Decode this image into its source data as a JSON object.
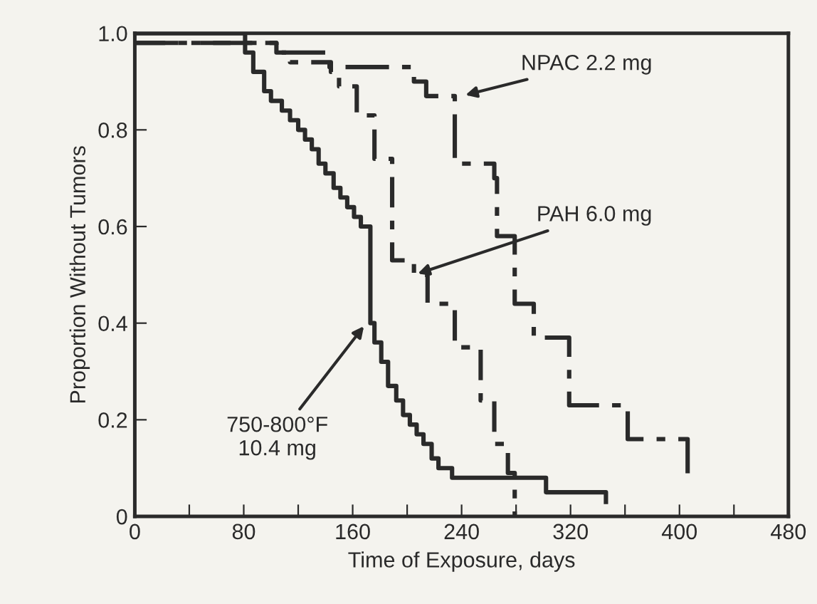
{
  "chart_data": {
    "type": "step",
    "xlabel": "Time of Exposure, days",
    "ylabel": "Proportion Without Tumors",
    "xlim": [
      0,
      480
    ],
    "ylim": [
      0,
      1.0
    ],
    "xticks": [
      0,
      {
        "value": 40,
        "label": null
      },
      80,
      {
        "value": 120,
        "label": null
      },
      160,
      {
        "value": 200,
        "label": null
      },
      240,
      {
        "value": 280,
        "label": null
      },
      320,
      {
        "value": 360,
        "label": null
      },
      400,
      {
        "value": 440,
        "label": null
      },
      480
    ],
    "yticks": [
      0,
      {
        "value": 0.2,
        "label": "0.2"
      },
      {
        "value": 0.4,
        "label": "0.4"
      },
      {
        "value": 0.6,
        "label": "0.6"
      },
      {
        "value": 0.8,
        "label": "0.8"
      },
      {
        "value": 1.0,
        "label": "1.0"
      }
    ],
    "grid": false,
    "legend": false,
    "series": [
      {
        "color": "#2a2a2a",
        "line_style": "solid",
        "x": [
          0,
          81,
          87,
          95,
          100,
          108,
          114,
          120,
          125,
          130,
          135,
          140,
          146,
          151,
          156,
          161,
          166,
          173,
          176,
          181,
          186,
          192,
          197,
          202,
          207,
          212,
          218,
          223,
          233,
          302,
          346
        ],
        "values": [
          1.0,
          0.96,
          0.92,
          0.88,
          0.86,
          0.84,
          0.82,
          0.8,
          0.78,
          0.76,
          0.73,
          0.71,
          0.68,
          0.66,
          0.64,
          0.62,
          0.6,
          0.4,
          0.36,
          0.32,
          0.27,
          0.24,
          0.21,
          0.19,
          0.17,
          0.15,
          0.12,
          0.1,
          0.08,
          0.05,
          0.03
        ]
      },
      {
        "color": "#2a2a2a",
        "line_style": "dashed",
        "x": [
          0,
          104,
          114,
          144,
          150,
          163,
          176,
          189,
          205,
          215,
          235,
          254,
          264,
          274,
          279
        ],
        "values": [
          0.98,
          0.96,
          0.94,
          0.92,
          0.89,
          0.83,
          0.74,
          0.53,
          0.5,
          0.44,
          0.35,
          0.24,
          0.15,
          0.09,
          0.0
        ]
      },
      {
        "color": "#2a2a2a",
        "line_style": "dashdot",
        "x": [
          0,
          104,
          143,
          205,
          214,
          235,
          264,
          266,
          279,
          293,
          319,
          362,
          406
        ],
        "values": [
          0.98,
          0.96,
          0.93,
          0.9,
          0.87,
          0.73,
          0.7,
          0.58,
          0.44,
          0.37,
          0.23,
          0.16,
          0.08
        ]
      }
    ],
    "annotations": [
      {
        "text": "NPAC 2.2 mg",
        "x": 240,
        "y": 0.87
      },
      {
        "text": "PAH 6.0 mg",
        "x": 205,
        "y": 0.5
      },
      {
        "text": "750-800°F\n10.4 mg",
        "x": 170,
        "y": 0.4
      }
    ]
  }
}
